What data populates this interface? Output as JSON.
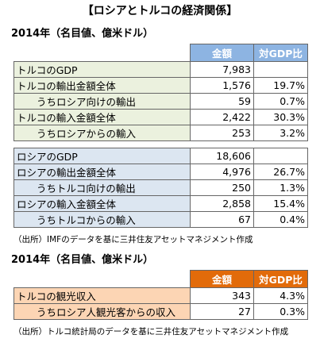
{
  "title": "【ロシアとトルコの経済関係】",
  "sections": [
    {
      "subtitle": "2014年（名目値、億米ドル）",
      "header": [
        "金額",
        "対GDP比"
      ],
      "header_color": "#8db4e2",
      "blocks": [
        {
          "color": "#ebf1de",
          "rows": [
            {
              "label": "トルコのGDP",
              "amount": "7,983"
            },
            {
              "label": "トルコの輸出金額全体",
              "amount": "1,576",
              "ratio": "19.7%",
              "sub": [
                {
                  "label": "うちロシア向けの輸出",
                  "amount": "59",
                  "ratio": "0.7%"
                }
              ]
            },
            {
              "label": "トルコの輸入金額全体",
              "amount": "2,422",
              "ratio": "30.3%",
              "sub": [
                {
                  "label": "うちロシアからの輸入",
                  "amount": "253",
                  "ratio": "3.2%"
                }
              ]
            }
          ]
        },
        {
          "color": "#dce6f1",
          "rows": [
            {
              "label": "ロシアのGDP",
              "amount": "18,606"
            },
            {
              "label": "ロシアの輸出金額全体",
              "amount": "4,976",
              "ratio": "26.7%",
              "sub": [
                {
                  "label": "うちトルコ向けの輸出",
                  "amount": "250",
                  "ratio": "1.3%"
                }
              ]
            },
            {
              "label": "ロシアの輸入金額全体",
              "amount": "2,858",
              "ratio": "15.4%",
              "sub": [
                {
                  "label": "うちトルコからの輸入",
                  "amount": "67",
                  "ratio": "0.4%"
                }
              ]
            }
          ]
        }
      ],
      "source": "（出所）IMFのデータを基に三井住友アセットマネジメント作成"
    },
    {
      "subtitle": "2014年（名目値、億米ドル）",
      "header": [
        "金額",
        "対GDP比"
      ],
      "header_color": "#e26b0a",
      "blocks": [
        {
          "color": "#fcd5b4",
          "rows": [
            {
              "label": "トルコの観光収入",
              "amount": "343",
              "ratio": "4.3%",
              "sub": [
                {
                  "label": "うちロシア人観光客からの収入",
                  "amount": "27",
                  "ratio": "0.3%"
                }
              ]
            }
          ]
        }
      ],
      "source": "（出所）トルコ統計局のデータを基に三井住友アセットマネジメント作成"
    }
  ]
}
